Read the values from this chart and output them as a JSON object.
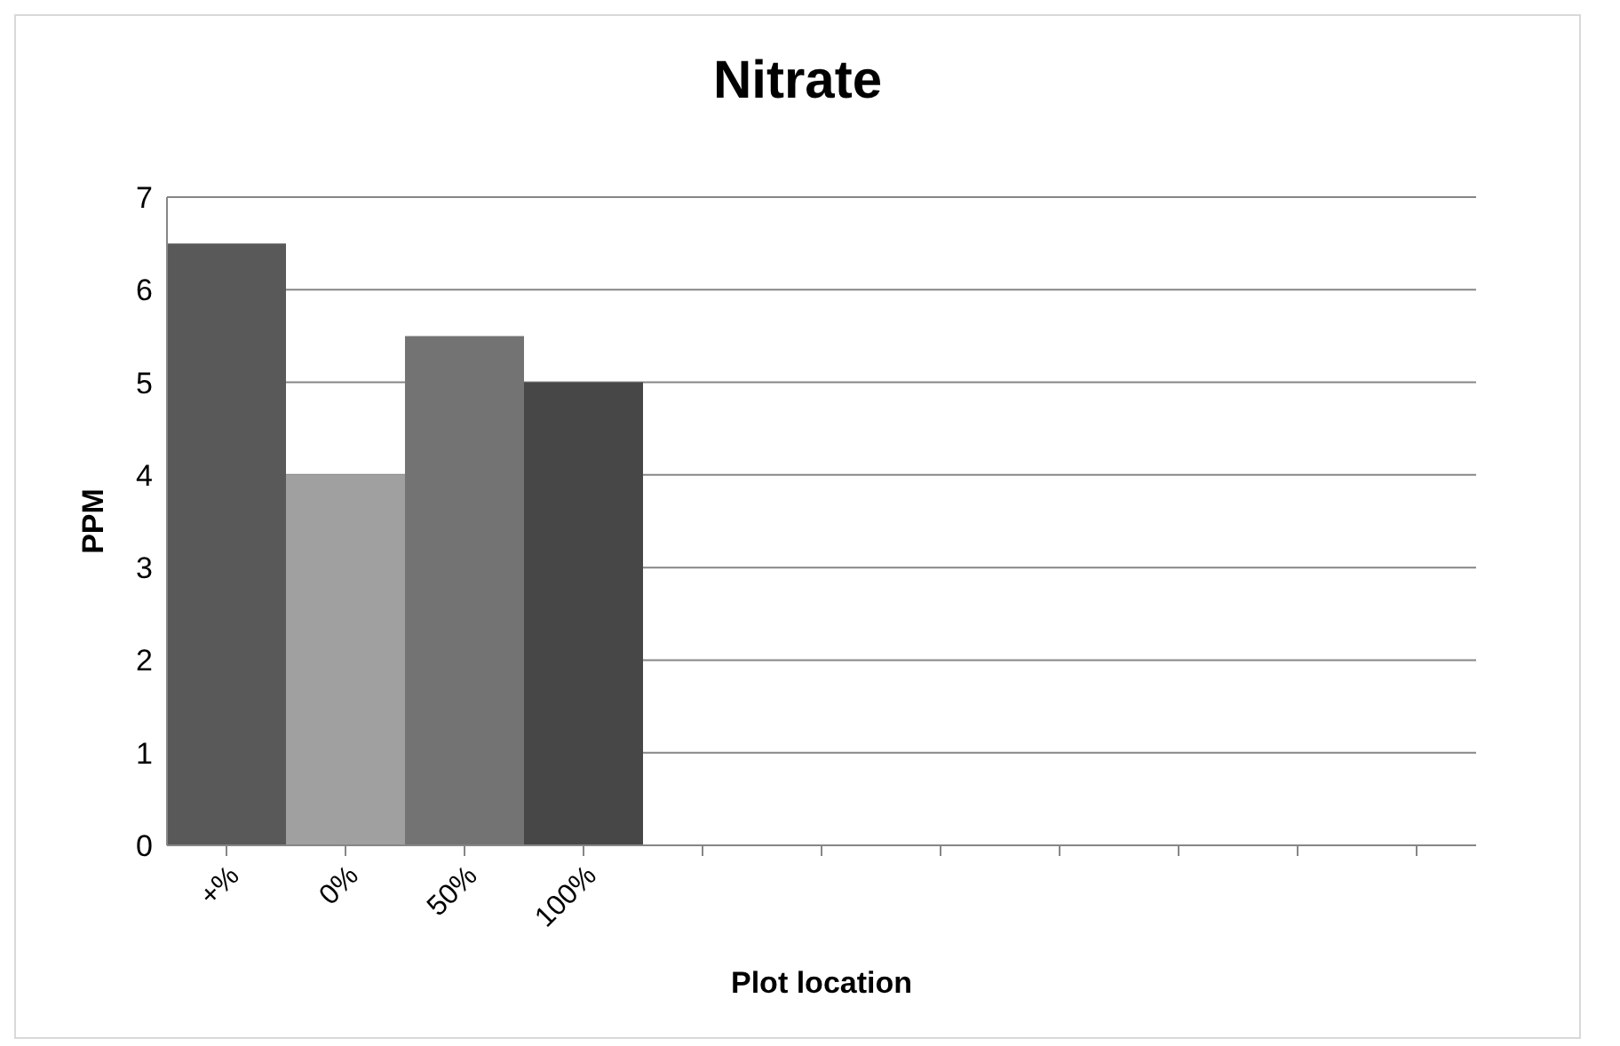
{
  "chart_data": {
    "type": "bar",
    "title": "Nitrate",
    "xlabel": "Plot location",
    "ylabel": "PPM",
    "categories": [
      "+%",
      "0%",
      "50%",
      "100%",
      null,
      null,
      null,
      null,
      null,
      null,
      null
    ],
    "values": [
      6.5,
      4,
      5.5,
      5,
      null,
      null,
      null,
      null,
      null,
      null,
      null
    ],
    "colors": [
      "#595959",
      "#a0a0a0",
      "#737373",
      "#474747",
      "#595959",
      "#595959",
      "#595959",
      "#595959",
      "#595959",
      "#595959",
      "#595959"
    ],
    "ylim": [
      0,
      7
    ],
    "yticks": [
      0,
      1,
      2,
      3,
      4,
      5,
      6,
      7
    ],
    "grid": "y",
    "legend": false
  }
}
